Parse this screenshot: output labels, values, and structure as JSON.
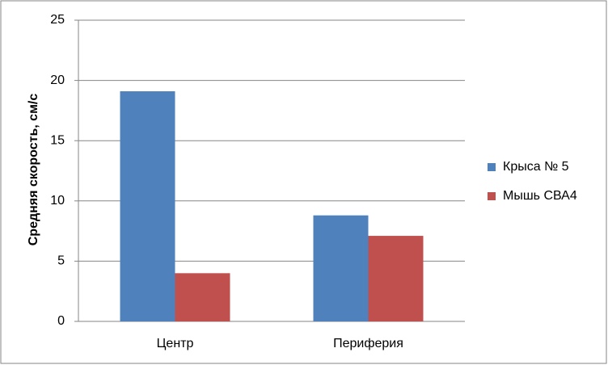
{
  "chart_data": {
    "type": "bar",
    "y_label": "Средняя скорость, см/с",
    "categories": [
      "Центр",
      "Периферия"
    ],
    "series": [
      {
        "name": "Крыса № 5",
        "color": "#4f81bd",
        "values": [
          19.1,
          8.8
        ]
      },
      {
        "name": "Мышь СВА4",
        "color": "#c0504d",
        "values": [
          4.0,
          7.1
        ]
      }
    ],
    "ylim": [
      0,
      25
    ],
    "yticks": [
      0,
      5,
      10,
      15,
      20,
      25
    ],
    "grid": true,
    "legend": "right"
  }
}
